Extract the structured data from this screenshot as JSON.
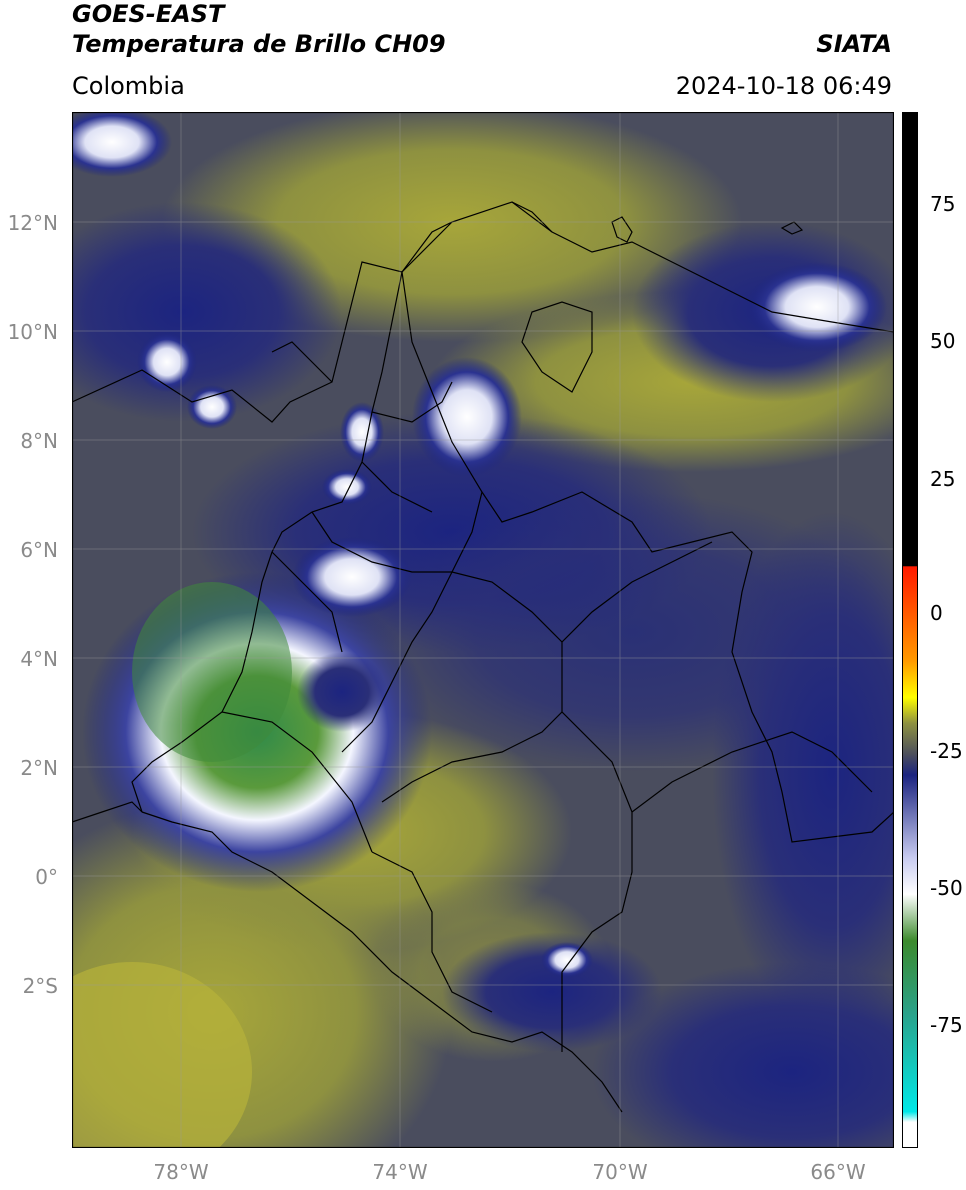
{
  "header": {
    "satellite": "GOES-EAST",
    "product": "Temperatura de Brillo CH09",
    "brand": "SIATA",
    "region": "Colombia",
    "timestamp": "2024-10-18 06:49"
  },
  "map": {
    "lat_ticks": [
      "12°N",
      "10°N",
      "8°N",
      "6°N",
      "4°N",
      "2°N",
      "0°",
      "2°S"
    ],
    "lon_ticks": [
      "78°W",
      "74°W",
      "70°W",
      "66°W"
    ],
    "colors": {
      "warm": "#8e9140",
      "mid": "#4c4f5c",
      "cold": "#1c2480",
      "white": "#f4f6ff",
      "green": "#3e8a3a"
    }
  },
  "colorbar": {
    "ticks": [
      "75",
      "50",
      "25",
      "0",
      "-25",
      "-50",
      "-75"
    ],
    "stops": [
      "#000000",
      "#ff0000",
      "#ffa500",
      "#ffff00",
      "#8e9140",
      "#4c4f5c",
      "#1c2480",
      "#ffffff",
      "#2d8a2d",
      "#00d8d8",
      "#ffffff"
    ]
  }
}
